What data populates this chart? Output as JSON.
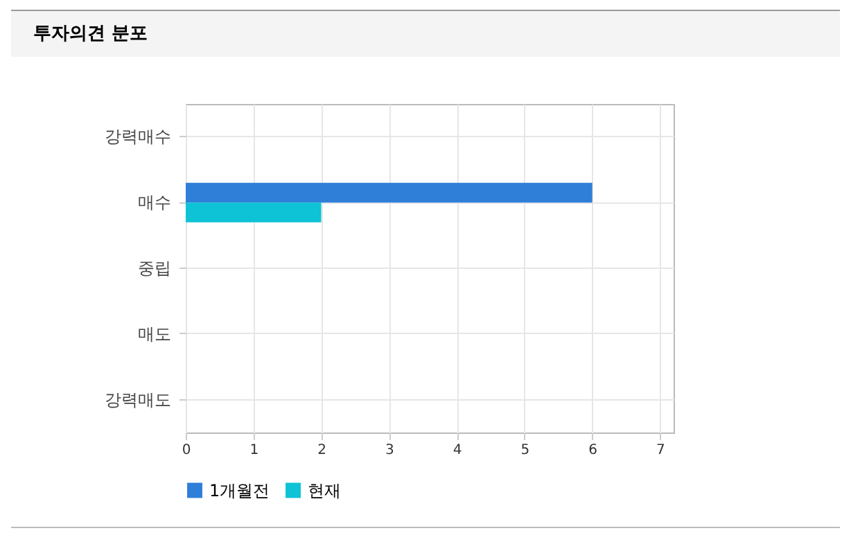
{
  "chart_data": {
    "type": "bar",
    "orientation": "horizontal",
    "title": "투자의견 분포",
    "categories": [
      "강력매수",
      "매수",
      "중립",
      "매도",
      "강력매도"
    ],
    "series": [
      {
        "name": "1개월전",
        "color": "#2f7ed8",
        "values": [
          0,
          6,
          0,
          0,
          0
        ]
      },
      {
        "name": "현재",
        "color": "#0dc3d5",
        "values": [
          0,
          2,
          0,
          0,
          0
        ]
      }
    ],
    "xlim": [
      0,
      7.2
    ],
    "xticks": [
      0,
      1,
      2,
      3,
      4,
      5,
      6,
      7
    ],
    "grid": true,
    "legend": "bottom"
  }
}
